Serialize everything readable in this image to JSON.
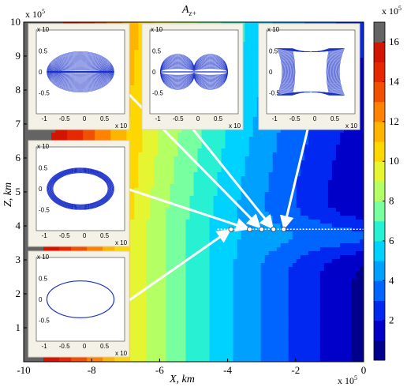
{
  "chart_data": {
    "type": "heatmap",
    "title": "A",
    "title_sub": "z+",
    "xlabel": "X, km",
    "ylabel": "Z, km",
    "xlim": [
      -10,
      0
    ],
    "ylim": [
      0,
      10
    ],
    "x_ticks": [
      "-10",
      "-8",
      "-6",
      "-4",
      "-2",
      "0"
    ],
    "y_ticks": [
      "1",
      "2",
      "3",
      "4",
      "5",
      "6",
      "7",
      "8",
      "9",
      "10"
    ],
    "x_multiplier": "x 10",
    "x_multiplier_exp": "5",
    "y_multiplier": "x 10",
    "y_multiplier_exp": "5",
    "colorbar": {
      "multiplier": "x 10",
      "multiplier_exp": "5",
      "ticks": [
        "2",
        "4",
        "6",
        "8",
        "10",
        "12",
        "14",
        "16"
      ],
      "range": [
        0,
        17
      ],
      "colors": [
        "#00008c",
        "#0000c8",
        "#0028f0",
        "#0064ff",
        "#00a0ff",
        "#00d2ff",
        "#28f0d2",
        "#78ffa0",
        "#b4ff64",
        "#e6f532",
        "#ffd700",
        "#ffb400",
        "#ff8200",
        "#f05000",
        "#e62800",
        "#d21400",
        "#646464"
      ]
    },
    "marked_points": [
      {
        "x": -3.9,
        "z": 3.9
      },
      {
        "x": -3.35,
        "z": 3.9
      },
      {
        "x": -3.0,
        "z": 3.9
      },
      {
        "x": -2.65,
        "z": 3.9
      },
      {
        "x": -2.35,
        "z": 3.9
      }
    ],
    "insets": [
      {
        "name": "inset-orbit-1",
        "shape": "dense-flat-ellipse",
        "ytick_top": "0.5",
        "ytick_mid": "0",
        "ytick_bot": "-0.5",
        "xticks": [
          "-1",
          "-0.5",
          "0",
          "0.5"
        ],
        "x_mult": "x 10",
        "y_mult": "x 10"
      },
      {
        "name": "inset-orbit-2",
        "shape": "pinched-ellipse",
        "ytick_top": "0.5",
        "ytick_mid": "0",
        "ytick_bot": "-0.5",
        "xticks": [
          "-1",
          "-0.5",
          "0",
          "0.5"
        ],
        "x_mult": "x 10",
        "y_mult": "x 10"
      },
      {
        "name": "inset-orbit-3",
        "shape": "barrel",
        "ytick_top": "0.5",
        "ytick_mid": "0",
        "ytick_bot": "-0.5",
        "xticks": [
          "-1",
          "-0.5",
          "0",
          "0.5"
        ],
        "x_mult": "x 10",
        "y_mult": "x 10"
      },
      {
        "name": "inset-orbit-4",
        "shape": "ring",
        "ytick_top": "0.5",
        "ytick_mid": "0",
        "ytick_bot": "-0.5",
        "xticks": [
          "-1",
          "-0.5",
          "0",
          "0.5"
        ],
        "x_mult": "x 10",
        "y_mult": "x 10"
      },
      {
        "name": "inset-orbit-5",
        "shape": "single-ellipse",
        "ytick_top": "0.5",
        "ytick_mid": "0",
        "ytick_bot": "-0.5",
        "xticks": [
          "-1",
          "-0.5",
          "0",
          "0.5"
        ],
        "x_mult": "x 10",
        "y_mult": "x 10"
      }
    ],
    "grid": false
  }
}
